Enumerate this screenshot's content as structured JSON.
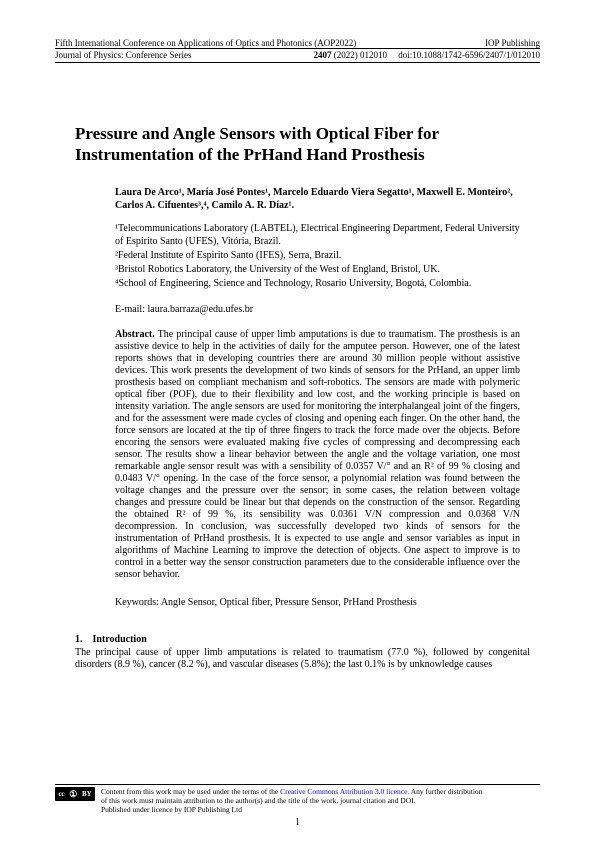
{
  "header": {
    "conference": "Fifth International Conference on Applications of Optics and Photonics (AOP2022)",
    "publisher": "IOP Publishing",
    "journal": "Journal of Physics: Conference Series",
    "volume": "2407",
    "year_page": "(2022) 012010",
    "doi": "doi:10.1088/1742-6596/2407/1/012010"
  },
  "title": "Pressure and Angle Sensors with Optical Fiber for Instrumentation of the PrHand Hand Prosthesis",
  "authors": "Laura De Arco¹, María José Pontes¹, Marcelo Eduardo Viera Segatto¹, Maxwell E. Monteiro², Carlos A. Cifuentes³,⁴, Camilo A. R. Díaz¹.",
  "affiliations": {
    "a1": "¹Telecommunications Laboratory (LABTEL), Electrical Engineering Department, Federal University of Espirito Santo (UFES), Vitória, Brazil.",
    "a2": "²Federal Institute of Espirito Santo (IFES), Serra, Brazil.",
    "a3": "³Bristol Robotics Laboratory, the University of the West of England, Bristol, UK.",
    "a4": "⁴School of Engineering, Science and Technology, Rosario University, Bogotá, Colombia."
  },
  "email_label": "E-mail:",
  "email": "laura.barraza@edu.ufes.br",
  "abstract_label": "Abstract",
  "abstract_text": "The principal cause of upper limb amputations is due to traumatism. The prosthesis is an assistive device to help in the activities of daily for the amputee person. However, one of the latest reports shows that in developing countries there are around 30 million people without assistive devices. This work presents the development of two kinds of sensors for the PrHand, an upper limb prosthesis based on compliant mechanism and soft-robotics. The sensors are made with polymeric optical fiber (POF), due to their flexibility and low cost, and the working principle is based on intensity variation. The angle sensors are used for monitoring the interphalangeal joint of the fingers, and for the assessment were made cycles of closing and opening each finger. On the other hand, the force sensors are located at the tip of three fingers to track the force made over the objects. Before encoring the sensors were evaluated making five cycles of compressing and decompressing each sensor. The results show a linear behavior between the angle and the voltage variation, one most remarkable angle sensor result was with a sensibility of 0.0357 V/° and an R² of 99 % closing and 0.0483 V/° opening. In the case of the force sensor, a polynomial relation was found between the voltage changes and the pressure over the sensor; in some cases, the relation between voltage changes and pressure could be linear but that depends on the construction of the sensor. Regarding the obtained R² of 99 %, its sensibility was 0.0361 V/N compression and 0.0368 V/N decompression. In conclusion, was successfully developed two kinds of sensors for the instrumentation of PrHand prosthesis. It is expected to use angle and sensor variables as input in algorithms of Machine Learning to improve the detection of objects. One aspect to improve is to control in a better way the sensor construction parameters due to the considerable influence over the sensor behavior.",
  "keywords": "Keywords: Angle Sensor, Optical fiber, Pressure Sensor, PrHand Prosthesis",
  "section1": {
    "number": "1.",
    "title": "Introduction",
    "text": "The principal cause of upper limb amputations is related to traumatism (77.0 %), followed by congenital disorders (8.9 %), cancer (8.2 %), and vascular diseases (5.8%); the last 0.1% is by unknowledge causes"
  },
  "footer": {
    "cc_label": "cc",
    "by_label": "BY",
    "line1_a": "Content from this work may be used under the terms of the ",
    "line1_link": "Creative Commons Attribution 3.0 licence",
    "line1_b": ". Any further distribution",
    "line2": "of this work must maintain attribution to the author(s) and the title of the work, journal citation and DOI.",
    "line3": "Published under licence by IOP Publishing Ltd"
  },
  "page_number": "1"
}
